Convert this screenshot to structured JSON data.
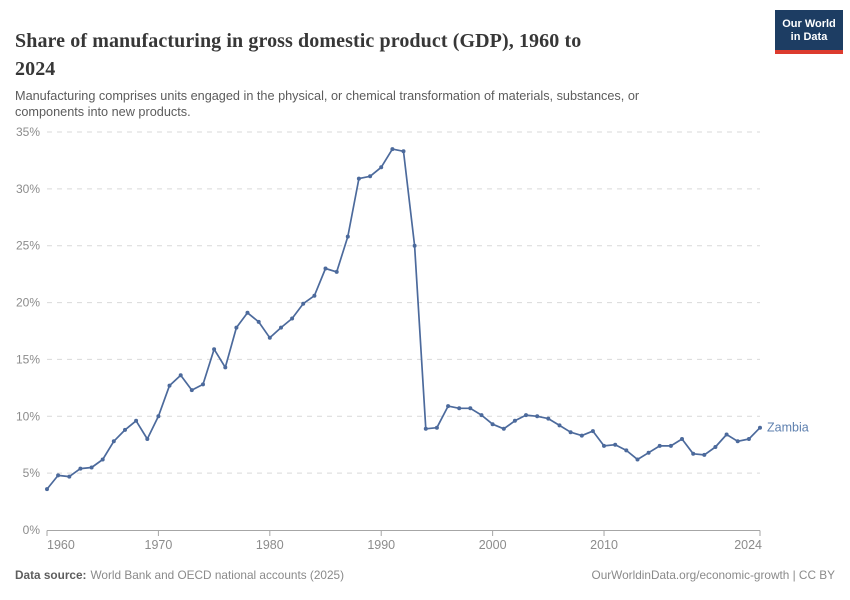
{
  "header": {
    "title": "Share of manufacturing in gross domestic product (GDP), 1960 to 2024",
    "title_lines": [
      "Share of manufacturing in gross domestic product (GDP), 1960 to",
      "2024"
    ],
    "subtitle": "Manufacturing comprises units engaged in the physical, or chemical transformation of materials, substances, or components into new products.",
    "subtitle_lines": [
      "Manufacturing comprises units engaged in the physical, or chemical transformation of materials, substances, or",
      "components into new products."
    ],
    "logo": {
      "line1": "Our World",
      "line2": "in Data",
      "bg_color": "#1d3d63",
      "accent_color": "#dc3b2e"
    }
  },
  "chart_data": {
    "type": "line",
    "title": "Share of manufacturing in gross domestic product (GDP), 1960 to 2024",
    "xlabel": "",
    "ylabel": "",
    "xlim": [
      1960,
      2024
    ],
    "ylim": [
      0,
      35
    ],
    "xticks": [
      1960,
      1970,
      1980,
      1990,
      2000,
      2010,
      2024
    ],
    "yticks": [
      0,
      5,
      10,
      15,
      20,
      25,
      30,
      35
    ],
    "ytick_suffix": "%",
    "grid": "horizontal-dashed",
    "legend": "inline-end-label",
    "x": [
      1960,
      1961,
      1962,
      1963,
      1964,
      1965,
      1966,
      1967,
      1968,
      1969,
      1970,
      1971,
      1972,
      1973,
      1974,
      1975,
      1976,
      1977,
      1978,
      1979,
      1980,
      1981,
      1982,
      1983,
      1984,
      1985,
      1986,
      1987,
      1988,
      1989,
      1990,
      1991,
      1992,
      1993,
      1994,
      1995,
      1996,
      1997,
      1998,
      1999,
      2000,
      2001,
      2002,
      2003,
      2004,
      2005,
      2006,
      2007,
      2008,
      2009,
      2010,
      2011,
      2012,
      2013,
      2014,
      2015,
      2016,
      2017,
      2018,
      2019,
      2020,
      2021,
      2022,
      2023,
      2024
    ],
    "series": [
      {
        "name": "Zambia",
        "color": "#4C6A9C",
        "label_color": "#5d7fae",
        "values": [
          3.6,
          4.8,
          4.7,
          5.4,
          5.5,
          6.2,
          7.8,
          8.8,
          9.6,
          8.0,
          10.0,
          12.7,
          13.6,
          12.3,
          12.8,
          15.9,
          14.3,
          17.8,
          19.1,
          18.3,
          16.9,
          17.8,
          18.6,
          19.9,
          20.6,
          23.0,
          22.7,
          25.8,
          30.9,
          31.1,
          31.9,
          33.5,
          33.3,
          25.0,
          8.9,
          9.0,
          10.9,
          10.7,
          10.7,
          10.1,
          9.3,
          8.9,
          9.6,
          10.1,
          10.0,
          9.8,
          9.2,
          8.6,
          8.3,
          8.7,
          7.4,
          7.5,
          7.0,
          6.2,
          6.8,
          7.4,
          7.4,
          8.0,
          6.7,
          6.6,
          7.3,
          8.4,
          7.8,
          8.0,
          9.0
        ]
      }
    ]
  },
  "footer": {
    "data_source_label": "Data source:",
    "data_source_value": "World Bank and OECD national accounts (2025)",
    "url": "OurWorldinData.org/economic-growth",
    "license_suffix": " | CC BY"
  }
}
